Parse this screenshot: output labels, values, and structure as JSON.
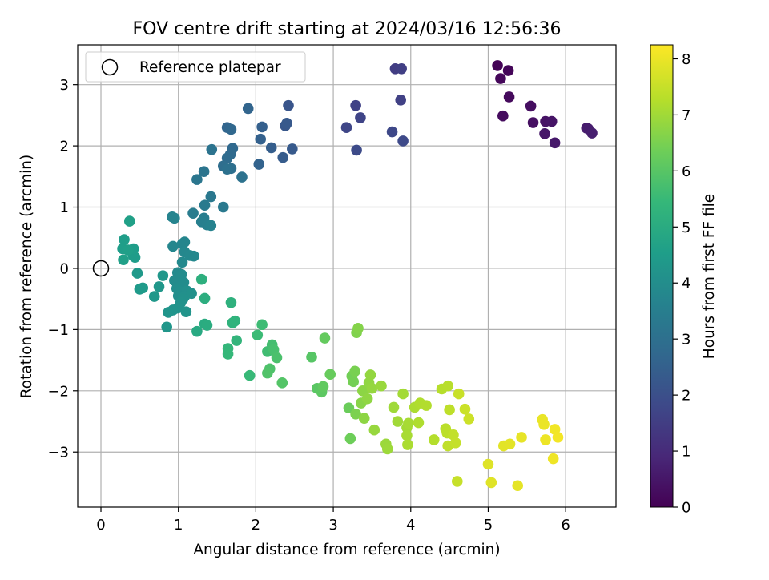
{
  "chart_data": {
    "type": "scatter",
    "title": "FOV centre drift starting at 2024/03/16 12:56:36",
    "xlabel": "Angular distance from reference (arcmin)",
    "ylabel": "Rotation from reference (arcmin)",
    "xlim": [
      -0.3,
      6.65
    ],
    "ylim": [
      -3.9,
      3.65
    ],
    "xticks": [
      0,
      1,
      2,
      3,
      4,
      5,
      6
    ],
    "yticks": [
      -3,
      -2,
      -1,
      0,
      1,
      2,
      3
    ],
    "grid": true,
    "legend": {
      "placement": "top-left",
      "entries": [
        "Reference platepar"
      ]
    },
    "reference_point": {
      "x": 0,
      "y": 0
    },
    "colorbar": {
      "label": "Hours from first FF file",
      "range": [
        0,
        8.25
      ],
      "ticks": [
        0,
        1,
        2,
        3,
        4,
        5,
        6,
        7,
        8
      ],
      "colormap": "viridis",
      "colors": [
        "#440154",
        "#482878",
        "#3e4989",
        "#31688e",
        "#26828e",
        "#1f9e89",
        "#35b779",
        "#6ece58",
        "#b5de2b",
        "#fde725"
      ]
    },
    "points": [
      {
        "x": 5.12,
        "y": 3.31,
        "h": 0.05
      },
      {
        "x": 5.26,
        "y": 3.23,
        "h": 0.1
      },
      {
        "x": 5.16,
        "y": 3.1,
        "h": 0.15
      },
      {
        "x": 5.27,
        "y": 2.8,
        "h": 0.2
      },
      {
        "x": 5.19,
        "y": 2.49,
        "h": 0.25
      },
      {
        "x": 5.55,
        "y": 2.65,
        "h": 0.3
      },
      {
        "x": 5.58,
        "y": 2.38,
        "h": 0.35
      },
      {
        "x": 5.74,
        "y": 2.4,
        "h": 0.4
      },
      {
        "x": 5.82,
        "y": 2.4,
        "h": 0.45
      },
      {
        "x": 5.73,
        "y": 2.2,
        "h": 0.5
      },
      {
        "x": 5.86,
        "y": 2.05,
        "h": 0.55
      },
      {
        "x": 6.27,
        "y": 2.29,
        "h": 0.6
      },
      {
        "x": 6.29,
        "y": 2.28,
        "h": 0.65
      },
      {
        "x": 6.34,
        "y": 2.21,
        "h": 0.7
      },
      {
        "x": 3.8,
        "y": 3.26,
        "h": 1.5
      },
      {
        "x": 3.88,
        "y": 3.26,
        "h": 1.55
      },
      {
        "x": 3.87,
        "y": 2.75,
        "h": 1.6
      },
      {
        "x": 3.29,
        "y": 2.66,
        "h": 1.65
      },
      {
        "x": 3.35,
        "y": 2.46,
        "h": 1.7
      },
      {
        "x": 3.17,
        "y": 2.3,
        "h": 1.75
      },
      {
        "x": 3.76,
        "y": 2.23,
        "h": 1.8
      },
      {
        "x": 3.9,
        "y": 2.08,
        "h": 1.85
      },
      {
        "x": 3.3,
        "y": 1.93,
        "h": 1.9
      },
      {
        "x": 2.42,
        "y": 2.66,
        "h": 2.2
      },
      {
        "x": 2.38,
        "y": 2.33,
        "h": 2.25
      },
      {
        "x": 2.4,
        "y": 2.37,
        "h": 2.3
      },
      {
        "x": 2.47,
        "y": 1.95,
        "h": 2.35
      },
      {
        "x": 2.35,
        "y": 1.81,
        "h": 2.4
      },
      {
        "x": 2.2,
        "y": 1.97,
        "h": 2.45
      },
      {
        "x": 2.08,
        "y": 2.31,
        "h": 2.5
      },
      {
        "x": 2.06,
        "y": 2.11,
        "h": 2.55
      },
      {
        "x": 2.04,
        "y": 1.7,
        "h": 2.6
      },
      {
        "x": 1.9,
        "y": 2.61,
        "h": 2.65
      },
      {
        "x": 1.63,
        "y": 2.3,
        "h": 2.7
      },
      {
        "x": 1.68,
        "y": 2.27,
        "h": 2.75
      },
      {
        "x": 1.7,
        "y": 1.96,
        "h": 2.8
      },
      {
        "x": 1.67,
        "y": 1.86,
        "h": 2.85
      },
      {
        "x": 1.63,
        "y": 1.8,
        "h": 2.9
      },
      {
        "x": 1.58,
        "y": 1.67,
        "h": 2.95
      },
      {
        "x": 1.68,
        "y": 1.63,
        "h": 3.0
      },
      {
        "x": 1.63,
        "y": 1.62,
        "h": 3.05
      },
      {
        "x": 1.82,
        "y": 1.49,
        "h": 3.1
      },
      {
        "x": 1.43,
        "y": 1.94,
        "h": 3.15
      },
      {
        "x": 1.33,
        "y": 1.58,
        "h": 3.2
      },
      {
        "x": 1.24,
        "y": 1.45,
        "h": 3.25
      },
      {
        "x": 1.42,
        "y": 1.17,
        "h": 3.3
      },
      {
        "x": 1.58,
        "y": 1.0,
        "h": 3.35
      },
      {
        "x": 1.34,
        "y": 1.03,
        "h": 3.4
      },
      {
        "x": 1.19,
        "y": 0.9,
        "h": 3.45
      },
      {
        "x": 1.33,
        "y": 0.82,
        "h": 3.5
      },
      {
        "x": 1.3,
        "y": 0.76,
        "h": 3.55
      },
      {
        "x": 1.37,
        "y": 0.71,
        "h": 3.6
      },
      {
        "x": 1.42,
        "y": 0.7,
        "h": 3.65
      },
      {
        "x": 0.92,
        "y": 0.84,
        "h": 3.7
      },
      {
        "x": 0.95,
        "y": 0.82,
        "h": 3.72
      },
      {
        "x": 1.05,
        "y": 0.4,
        "h": 3.75
      },
      {
        "x": 1.08,
        "y": 0.43,
        "h": 3.78
      },
      {
        "x": 0.93,
        "y": 0.36,
        "h": 3.8
      },
      {
        "x": 1.08,
        "y": 0.27,
        "h": 3.82
      },
      {
        "x": 1.15,
        "y": 0.21,
        "h": 3.85
      },
      {
        "x": 1.2,
        "y": 0.2,
        "h": 3.87
      },
      {
        "x": 1.05,
        "y": 0.1,
        "h": 3.9
      },
      {
        "x": 0.99,
        "y": -0.07,
        "h": 3.92
      },
      {
        "x": 1.04,
        "y": -0.1,
        "h": 3.95
      },
      {
        "x": 0.95,
        "y": -0.2,
        "h": 3.97
      },
      {
        "x": 1.07,
        "y": -0.23,
        "h": 4.0
      },
      {
        "x": 0.98,
        "y": -0.33,
        "h": 4.02
      },
      {
        "x": 1.02,
        "y": -0.38,
        "h": 4.05
      },
      {
        "x": 1.0,
        "y": -0.45,
        "h": 4.07
      },
      {
        "x": 1.11,
        "y": -0.37,
        "h": 4.1
      },
      {
        "x": 1.08,
        "y": -0.46,
        "h": 4.12
      },
      {
        "x": 1.17,
        "y": -0.41,
        "h": 4.15
      },
      {
        "x": 1.06,
        "y": -0.5,
        "h": 4.17
      },
      {
        "x": 1.03,
        "y": -0.56,
        "h": 4.2
      },
      {
        "x": 0.99,
        "y": -0.65,
        "h": 4.22
      },
      {
        "x": 1.1,
        "y": -0.71,
        "h": 4.25
      },
      {
        "x": 0.93,
        "y": -0.68,
        "h": 4.27
      },
      {
        "x": 0.87,
        "y": -0.72,
        "h": 4.3
      },
      {
        "x": 0.85,
        "y": -0.96,
        "h": 4.32
      },
      {
        "x": 0.8,
        "y": -0.12,
        "h": 4.35
      },
      {
        "x": 0.75,
        "y": -0.3,
        "h": 4.37
      },
      {
        "x": 0.69,
        "y": -0.46,
        "h": 4.4
      },
      {
        "x": 0.47,
        "y": -0.08,
        "h": 4.42
      },
      {
        "x": 0.5,
        "y": -0.34,
        "h": 4.45
      },
      {
        "x": 0.54,
        "y": -0.32,
        "h": 4.47
      },
      {
        "x": 0.42,
        "y": 0.2,
        "h": 4.5
      },
      {
        "x": 0.44,
        "y": 0.18,
        "h": 4.52
      },
      {
        "x": 0.42,
        "y": 0.32,
        "h": 4.55
      },
      {
        "x": 0.3,
        "y": 0.47,
        "h": 4.57
      },
      {
        "x": 0.28,
        "y": 0.32,
        "h": 4.6
      },
      {
        "x": 0.35,
        "y": 0.3,
        "h": 4.62
      },
      {
        "x": 0.29,
        "y": 0.14,
        "h": 4.65
      },
      {
        "x": 0.37,
        "y": 0.77,
        "h": 4.67
      },
      {
        "x": 1.24,
        "y": -1.03,
        "h": 5.0
      },
      {
        "x": 1.34,
        "y": -0.91,
        "h": 5.05
      },
      {
        "x": 1.37,
        "y": -0.93,
        "h": 5.1
      },
      {
        "x": 1.34,
        "y": -0.49,
        "h": 5.15
      },
      {
        "x": 1.3,
        "y": -0.18,
        "h": 5.2
      },
      {
        "x": 1.68,
        "y": -0.56,
        "h": 5.25
      },
      {
        "x": 1.7,
        "y": -0.89,
        "h": 5.3
      },
      {
        "x": 1.73,
        "y": -0.86,
        "h": 5.35
      },
      {
        "x": 1.75,
        "y": -1.18,
        "h": 5.4
      },
      {
        "x": 1.64,
        "y": -1.31,
        "h": 5.45
      },
      {
        "x": 1.64,
        "y": -1.4,
        "h": 5.5
      },
      {
        "x": 1.92,
        "y": -1.75,
        "h": 5.55
      },
      {
        "x": 2.02,
        "y": -1.09,
        "h": 5.6
      },
      {
        "x": 2.08,
        "y": -0.92,
        "h": 5.65
      },
      {
        "x": 2.15,
        "y": -1.36,
        "h": 5.7
      },
      {
        "x": 2.21,
        "y": -1.25,
        "h": 5.75
      },
      {
        "x": 2.23,
        "y": -1.33,
        "h": 5.8
      },
      {
        "x": 2.27,
        "y": -1.46,
        "h": 5.85
      },
      {
        "x": 2.18,
        "y": -1.64,
        "h": 5.9
      },
      {
        "x": 2.15,
        "y": -1.71,
        "h": 5.95
      },
      {
        "x": 2.34,
        "y": -1.87,
        "h": 6.0
      },
      {
        "x": 2.72,
        "y": -1.45,
        "h": 6.05
      },
      {
        "x": 2.79,
        "y": -1.96,
        "h": 6.1
      },
      {
        "x": 2.85,
        "y": -2.02,
        "h": 6.15
      },
      {
        "x": 2.87,
        "y": -1.93,
        "h": 6.2
      },
      {
        "x": 2.89,
        "y": -1.14,
        "h": 6.25
      },
      {
        "x": 2.96,
        "y": -1.73,
        "h": 6.3
      },
      {
        "x": 3.2,
        "y": -2.28,
        "h": 6.35
      },
      {
        "x": 3.22,
        "y": -2.78,
        "h": 6.4
      },
      {
        "x": 3.24,
        "y": -1.76,
        "h": 6.45
      },
      {
        "x": 3.26,
        "y": -1.85,
        "h": 6.5
      },
      {
        "x": 3.28,
        "y": -1.68,
        "h": 6.55
      },
      {
        "x": 3.29,
        "y": -2.38,
        "h": 6.6
      },
      {
        "x": 3.3,
        "y": -1.05,
        "h": 6.65
      },
      {
        "x": 3.32,
        "y": -0.98,
        "h": 6.7
      },
      {
        "x": 3.36,
        "y": -2.2,
        "h": 6.75
      },
      {
        "x": 3.38,
        "y": -2.0,
        "h": 6.8
      },
      {
        "x": 3.4,
        "y": -2.45,
        "h": 6.82
      },
      {
        "x": 3.44,
        "y": -2.13,
        "h": 6.85
      },
      {
        "x": 3.46,
        "y": -1.87,
        "h": 6.87
      },
      {
        "x": 3.48,
        "y": -1.74,
        "h": 6.9
      },
      {
        "x": 3.5,
        "y": -1.96,
        "h": 6.92
      },
      {
        "x": 3.53,
        "y": -2.64,
        "h": 6.95
      },
      {
        "x": 3.62,
        "y": -1.92,
        "h": 6.97
      },
      {
        "x": 3.68,
        "y": -2.87,
        "h": 7.0
      },
      {
        "x": 3.7,
        "y": -2.95,
        "h": 7.02
      },
      {
        "x": 3.78,
        "y": -2.27,
        "h": 7.05
      },
      {
        "x": 3.83,
        "y": -2.5,
        "h": 7.07
      },
      {
        "x": 3.9,
        "y": -2.05,
        "h": 7.1
      },
      {
        "x": 3.95,
        "y": -2.6,
        "h": 7.12
      },
      {
        "x": 3.97,
        "y": -2.53,
        "h": 7.15
      },
      {
        "x": 3.95,
        "y": -2.73,
        "h": 7.17
      },
      {
        "x": 3.96,
        "y": -2.88,
        "h": 7.2
      },
      {
        "x": 4.05,
        "y": -2.27,
        "h": 7.22
      },
      {
        "x": 4.1,
        "y": -2.52,
        "h": 7.25
      },
      {
        "x": 4.12,
        "y": -2.2,
        "h": 7.27
      },
      {
        "x": 4.2,
        "y": -2.24,
        "h": 7.3
      },
      {
        "x": 4.3,
        "y": -2.8,
        "h": 7.32
      },
      {
        "x": 4.4,
        "y": -1.97,
        "h": 7.35
      },
      {
        "x": 4.48,
        "y": -1.92,
        "h": 7.37
      },
      {
        "x": 4.45,
        "y": -2.62,
        "h": 7.4
      },
      {
        "x": 4.47,
        "y": -2.69,
        "h": 7.42
      },
      {
        "x": 4.5,
        "y": -2.31,
        "h": 7.45
      },
      {
        "x": 4.48,
        "y": -2.9,
        "h": 7.47
      },
      {
        "x": 4.55,
        "y": -2.72,
        "h": 7.5
      },
      {
        "x": 4.58,
        "y": -2.85,
        "h": 7.52
      },
      {
        "x": 4.6,
        "y": -3.48,
        "h": 7.55
      },
      {
        "x": 4.62,
        "y": -2.05,
        "h": 7.57
      },
      {
        "x": 4.7,
        "y": -2.3,
        "h": 7.6
      },
      {
        "x": 4.75,
        "y": -2.46,
        "h": 7.62
      },
      {
        "x": 5.0,
        "y": -3.2,
        "h": 7.85
      },
      {
        "x": 5.04,
        "y": -3.5,
        "h": 7.87
      },
      {
        "x": 5.2,
        "y": -2.9,
        "h": 7.9
      },
      {
        "x": 5.28,
        "y": -2.87,
        "h": 7.92
      },
      {
        "x": 5.38,
        "y": -3.55,
        "h": 7.95
      },
      {
        "x": 5.43,
        "y": -2.76,
        "h": 7.97
      },
      {
        "x": 5.7,
        "y": -2.47,
        "h": 8.0
      },
      {
        "x": 5.72,
        "y": -2.55,
        "h": 8.02
      },
      {
        "x": 5.74,
        "y": -2.8,
        "h": 8.05
      },
      {
        "x": 5.84,
        "y": -3.11,
        "h": 8.07
      },
      {
        "x": 5.86,
        "y": -2.63,
        "h": 8.1
      },
      {
        "x": 5.9,
        "y": -2.76,
        "h": 8.12
      }
    ]
  }
}
